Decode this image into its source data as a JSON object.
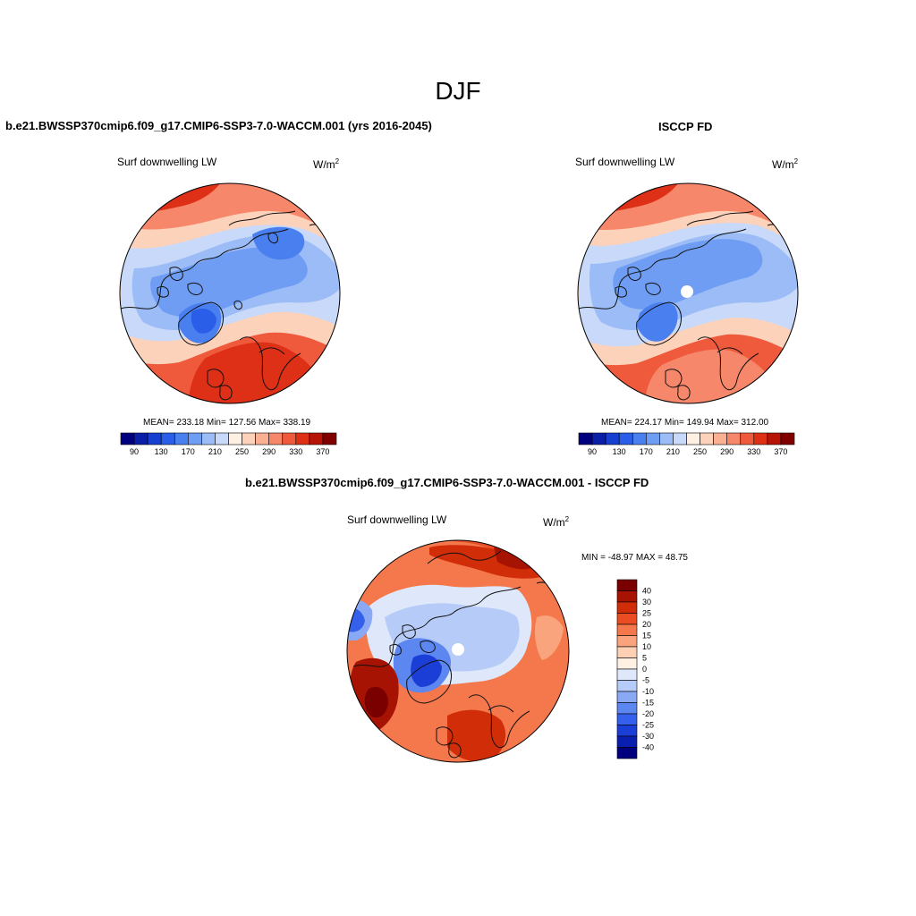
{
  "page": {
    "main_title": "DJF",
    "colors": {
      "abs_levels": [
        "#00007f",
        "#0a1fa8",
        "#1640d0",
        "#2a5ee8",
        "#4a7ff0",
        "#6f9df3",
        "#9bbcf6",
        "#c8d9f9",
        "#fff0e4",
        "#fdd2bb",
        "#fbb093",
        "#f7876a",
        "#f05a3c",
        "#de3016",
        "#b81405",
        "#800000"
      ],
      "diff_levels": [
        "#00007f",
        "#0a1fb0",
        "#1a3ed6",
        "#3560ec",
        "#5c86f0",
        "#8aa9f4",
        "#b6cbf8",
        "#dfe8fb",
        "#fff0e4",
        "#fdcfb3",
        "#f9a47d",
        "#f4784c",
        "#ea4d23",
        "#d02d08",
        "#a61302",
        "#7a0000"
      ],
      "coast": "#111111",
      "missing": "#ffffff"
    }
  },
  "panels": [
    {
      "title": "b.e21.BWSSP370cmip6.f09_g17.CMIP6-SSP3-7.0-WACCM.001 (yrs 2016-2045)",
      "variable": "Surf downwelling LW",
      "units": "W/m",
      "units_exp": "2",
      "stats": "MEAN= 233.18  Min= 127.56  Max= 338.19",
      "colorbar_ticks": [
        "90",
        "130",
        "170",
        "210",
        "250",
        "290",
        "330",
        "370"
      ],
      "colorbar_levels": [
        90,
        110,
        130,
        150,
        170,
        190,
        210,
        230,
        250,
        270,
        290,
        310,
        330,
        350,
        370
      ]
    },
    {
      "title": "ISCCP FD",
      "variable": "Surf downwelling LW",
      "units": "W/m",
      "units_exp": "2",
      "stats": "MEAN= 224.17  Min= 149.94  Max= 312.00",
      "colorbar_ticks": [
        "90",
        "130",
        "170",
        "210",
        "250",
        "290",
        "330",
        "370"
      ],
      "colorbar_levels": [
        90,
        110,
        130,
        150,
        170,
        190,
        210,
        230,
        250,
        270,
        290,
        310,
        330,
        350,
        370
      ]
    },
    {
      "title": "b.e21.BWSSP370cmip6.f09_g17.CMIP6-SSP3-7.0-WACCM.001 - ISCCP FD",
      "variable": "Surf downwelling LW",
      "units": "W/m",
      "units_exp": "2",
      "stats": "MIN = -48.97 MAX =  48.75",
      "colorbar_ticks": [
        "40",
        "30",
        "25",
        "20",
        "15",
        "10",
        "5",
        "0",
        "-5",
        "-10",
        "-15",
        "-20",
        "-25",
        "-30",
        "-40"
      ],
      "colorbar_levels": [
        -40,
        -30,
        -25,
        -20,
        -15,
        -10,
        -5,
        0,
        5,
        10,
        15,
        20,
        25,
        30,
        40
      ]
    }
  ]
}
